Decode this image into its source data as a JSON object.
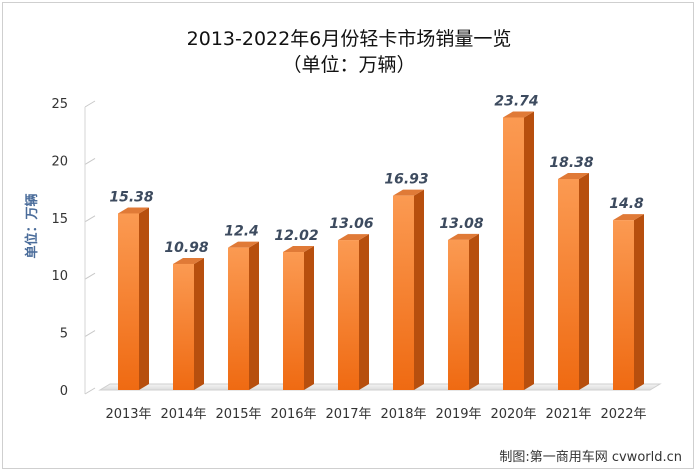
{
  "chart_data": {
    "type": "bar",
    "title": "2013-2022年6月份轻卡市场销量一览",
    "subtitle": "（单位：万辆）",
    "ylabel": "单位：万辆",
    "xlabel": "",
    "categories": [
      "2013年",
      "2014年",
      "2015年",
      "2016年",
      "2017年",
      "2018年",
      "2019年",
      "2020年",
      "2021年",
      "2022年"
    ],
    "values": [
      15.38,
      10.98,
      12.4,
      12.02,
      13.06,
      16.93,
      13.08,
      23.74,
      18.38,
      14.8
    ],
    "value_labels": [
      "15.38",
      "10.98",
      "12.4",
      "12.02",
      "13.06",
      "16.93",
      "13.08",
      "23.74",
      "18.38",
      "14.8"
    ],
    "ylim": [
      0,
      25
    ],
    "yticks": [
      0,
      5,
      10,
      15,
      20,
      25
    ],
    "grid": false,
    "legend": "none",
    "colors": {
      "bar_front_top": "#fb9a52",
      "bar_front_bottom": "#ef6a12",
      "bar_side": "#b74f0e",
      "bar_top": "#e07a37",
      "value_label": "#3d4b5f",
      "axis_text": "#333333",
      "ylabel": "#4a6c9a"
    }
  },
  "credit": "制图:第一商用车网 cvworld.cn"
}
